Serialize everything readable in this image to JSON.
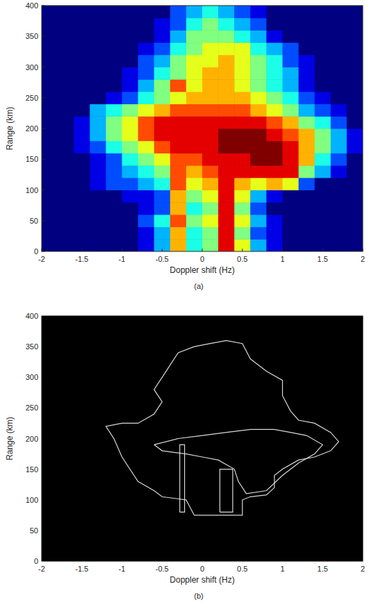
{
  "chart_data": [
    {
      "type": "heatmap",
      "title": "(a)",
      "x_label": "Doppler shift (Hz)",
      "y_label": "Range (km)",
      "xlim": [
        -2,
        2
      ],
      "ylim": [
        0,
        400
      ],
      "xticks": [
        -2,
        -1.5,
        -1,
        -0.5,
        0,
        0.5,
        1,
        1.5,
        2
      ],
      "yticks": [
        0,
        50,
        100,
        150,
        200,
        250,
        300,
        350,
        400
      ],
      "x": [
        -1.9,
        -1.7,
        -1.5,
        -1.3,
        -1.1,
        -0.9,
        -0.7,
        -0.5,
        -0.3,
        -0.1,
        0.1,
        0.3,
        0.5,
        0.7,
        0.9,
        1.1,
        1.3,
        1.5,
        1.7,
        1.9
      ],
      "y": [
        10,
        30,
        50,
        70,
        90,
        110,
        130,
        150,
        170,
        190,
        210,
        230,
        250,
        270,
        290,
        310,
        330,
        350,
        370,
        390
      ],
      "color_range": [
        0,
        10
      ],
      "cells": [
        [
          0,
          0,
          0,
          0,
          0,
          0,
          1,
          3,
          7,
          4,
          5,
          9,
          6,
          3,
          1,
          0,
          0,
          0,
          0,
          0
        ],
        [
          0,
          0,
          0,
          0,
          0,
          0,
          1,
          3,
          7,
          4,
          5,
          9,
          5,
          2,
          1,
          0,
          0,
          0,
          0,
          0
        ],
        [
          0,
          0,
          0,
          0,
          0,
          0,
          2,
          4,
          8,
          5,
          6,
          9,
          6,
          3,
          1,
          0,
          0,
          0,
          0,
          0
        ],
        [
          0,
          0,
          0,
          0,
          0,
          0,
          1,
          2,
          7,
          4,
          5,
          9,
          5,
          2,
          0,
          0,
          0,
          0,
          0,
          0
        ],
        [
          0,
          0,
          0,
          0,
          0,
          1,
          1,
          2,
          7,
          5,
          6,
          9,
          6,
          3,
          1,
          0,
          0,
          0,
          0,
          0
        ],
        [
          0,
          0,
          0,
          1,
          2,
          2,
          3,
          4,
          8,
          6,
          7,
          9,
          7,
          6,
          7,
          6,
          2,
          0,
          0,
          0
        ],
        [
          0,
          0,
          0,
          1,
          2,
          3,
          4,
          5,
          8,
          7,
          8,
          9,
          9,
          9,
          9,
          9,
          5,
          3,
          1,
          0
        ],
        [
          0,
          0,
          0,
          1,
          2,
          4,
          5,
          6,
          8,
          8,
          9,
          9,
          9,
          10,
          10,
          9,
          7,
          4,
          2,
          0
        ],
        [
          0,
          0,
          1,
          2,
          4,
          5,
          6,
          8,
          9,
          9,
          9,
          10,
          10,
          10,
          10,
          9,
          7,
          5,
          3,
          1
        ],
        [
          0,
          0,
          1,
          3,
          5,
          6,
          8,
          9,
          9,
          9,
          9,
          10,
          10,
          10,
          9,
          8,
          7,
          5,
          3,
          1
        ],
        [
          0,
          0,
          1,
          3,
          5,
          6,
          8,
          9,
          9,
          9,
          9,
          9,
          9,
          9,
          8,
          7,
          5,
          4,
          2,
          0
        ],
        [
          0,
          0,
          0,
          3,
          4,
          5,
          6,
          7,
          8,
          8,
          8,
          8,
          8,
          7,
          6,
          5,
          3,
          2,
          1,
          0
        ],
        [
          0,
          0,
          0,
          0,
          1,
          2,
          4,
          5,
          6,
          7,
          7,
          7,
          7,
          6,
          5,
          4,
          2,
          1,
          0,
          0
        ],
        [
          0,
          0,
          0,
          0,
          0,
          1,
          3,
          5,
          8,
          6,
          7,
          7,
          6,
          5,
          4,
          3,
          1,
          0,
          0,
          0
        ],
        [
          0,
          0,
          0,
          0,
          0,
          1,
          2,
          4,
          5,
          6,
          7,
          7,
          6,
          5,
          4,
          3,
          1,
          0,
          0,
          0
        ],
        [
          0,
          0,
          0,
          0,
          0,
          0,
          2,
          3,
          5,
          6,
          6,
          7,
          6,
          5,
          4,
          2,
          1,
          0,
          0,
          0
        ],
        [
          0,
          0,
          0,
          0,
          0,
          0,
          1,
          2,
          4,
          5,
          6,
          6,
          6,
          4,
          3,
          2,
          0,
          0,
          0,
          0
        ],
        [
          0,
          0,
          0,
          0,
          0,
          0,
          0,
          1,
          3,
          5,
          5,
          5,
          4,
          3,
          1,
          0,
          0,
          0,
          0,
          0
        ],
        [
          0,
          0,
          0,
          0,
          0,
          0,
          0,
          1,
          2,
          4,
          5,
          4,
          3,
          2,
          0,
          0,
          0,
          0,
          0,
          0
        ],
        [
          0,
          0,
          0,
          0,
          0,
          0,
          0,
          0,
          2,
          3,
          4,
          3,
          2,
          1,
          0,
          0,
          0,
          0,
          0,
          0
        ]
      ]
    },
    {
      "type": "contour",
      "title": "(b)",
      "x_label": "Doppler shift (Hz)",
      "y_label": "Range (km)",
      "xlim": [
        -2,
        2
      ],
      "ylim": [
        0,
        400
      ],
      "xticks": [
        -2,
        -1.5,
        -1,
        -0.5,
        0,
        0.5,
        1,
        1.5,
        2
      ],
      "yticks": [
        0,
        50,
        100,
        150,
        200,
        250,
        300,
        350,
        400
      ],
      "contours": [
        {
          "x": [
            -0.1,
            -0.2,
            -0.5,
            -0.6,
            -0.8,
            -1.0,
            -1.1,
            -1.2,
            -1.0,
            -0.8,
            -0.6,
            -0.5,
            -0.6,
            -0.5,
            -0.4,
            -0.3,
            -0.1,
            0.1,
            0.3,
            0.5,
            0.6,
            0.8,
            1.0,
            1.0,
            1.1,
            1.2,
            1.4,
            1.6,
            1.7,
            1.6,
            1.4,
            1.2,
            1.0,
            0.9,
            0.9,
            0.8,
            0.6,
            0.5,
            0.5,
            -0.1
          ],
          "y": [
            75,
            100,
            105,
            115,
            130,
            170,
            200,
            220,
            225,
            225,
            240,
            260,
            280,
            300,
            320,
            340,
            350,
            355,
            360,
            355,
            330,
            310,
            295,
            270,
            245,
            230,
            225,
            210,
            195,
            180,
            170,
            165,
            150,
            140,
            120,
            108,
            105,
            100,
            75,
            75
          ]
        },
        {
          "x": [
            -0.6,
            -0.3,
            0,
            0.3,
            0.6,
            0.9,
            1.1,
            1.3,
            1.5,
            1.4,
            1.2,
            1.0,
            0.8,
            0.55,
            0.45,
            0.4,
            0.2,
            0,
            -0.2,
            -0.5,
            -0.6
          ],
          "y": [
            190,
            200,
            205,
            210,
            215,
            215,
            210,
            205,
            190,
            175,
            160,
            140,
            115,
            110,
            130,
            150,
            165,
            170,
            175,
            180,
            190
          ]
        },
        {
          "x": [
            -0.28,
            -0.28,
            -0.22,
            -0.22,
            -0.28
          ],
          "y": [
            80,
            190,
            190,
            80,
            80
          ]
        },
        {
          "x": [
            0.22,
            0.22,
            0.38,
            0.38,
            0.22
          ],
          "y": [
            80,
            150,
            150,
            80,
            80
          ]
        }
      ]
    }
  ]
}
